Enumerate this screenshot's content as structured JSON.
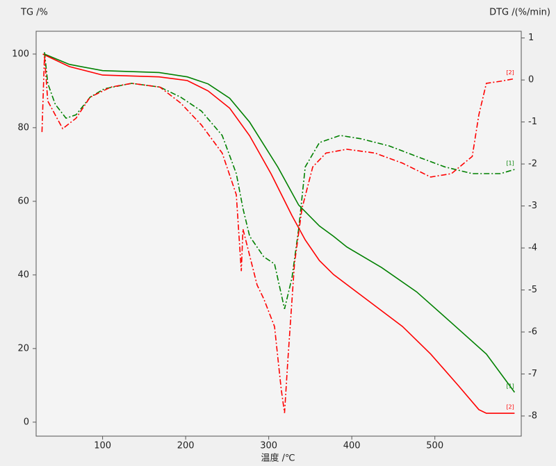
{
  "chart_data": {
    "type": "line",
    "y_label": "TG /%",
    "y2_label": "DTG /(%/min)",
    "x_label": "温度 /℃",
    "xlim": [
      20,
      604
    ],
    "xticks": [
      100,
      200,
      300,
      400,
      500
    ],
    "ylim": [
      -3.8,
      106.2
    ],
    "yticks": [
      0,
      20,
      40,
      60,
      80,
      100
    ],
    "y2lim": [
      -8.48,
      1.16
    ],
    "y2ticks": [
      1,
      0,
      -1,
      -2,
      -3,
      -4,
      -5,
      -6,
      -7,
      -8
    ],
    "series": [
      {
        "name": "[1]",
        "color": "#008000",
        "style": "solid",
        "x": [
          30,
          60,
          100,
          168,
          202,
          227,
          253,
          277,
          311,
          336,
          361,
          378,
          394,
          436,
          478,
          520,
          562,
          596
        ],
        "values": [
          100,
          97.2,
          95.5,
          95,
          93.8,
          91.9,
          88,
          81.5,
          69.3,
          59,
          53.3,
          50.5,
          47.6,
          42,
          35.4,
          27,
          18.5,
          8.1
        ]
      },
      {
        "name": "[2]",
        "color": "#ff0000",
        "style": "solid",
        "x": [
          28,
          60,
          100,
          168,
          202,
          227,
          253,
          277,
          303,
          328,
          344,
          361,
          378,
          411,
          461,
          495,
          528,
          553,
          562,
          596
        ],
        "values": [
          100,
          96.6,
          94.3,
          93.8,
          92.8,
          90,
          85.3,
          77.8,
          67.4,
          56.1,
          49.5,
          43.9,
          40.1,
          34.5,
          26,
          18.5,
          10,
          3.4,
          2.4,
          2.4
        ]
      },
      {
        "name": "[1]",
        "color": "#008000",
        "style": "dashdot",
        "axis": "y2",
        "x": [
          30,
          34,
          43,
          56,
          68,
          85,
          102,
          135,
          169,
          194,
          219,
          244,
          261,
          269,
          277,
          294,
          307,
          319,
          328,
          336,
          344,
          361,
          386,
          411,
          445,
          478,
          512,
          545,
          579,
          596
        ],
        "values": [
          0.66,
          -0.08,
          -0.58,
          -0.91,
          -0.83,
          -0.41,
          -0.21,
          -0.08,
          -0.17,
          -0.41,
          -0.74,
          -1.32,
          -2.23,
          -3.06,
          -3.72,
          -4.21,
          -4.38,
          -5.45,
          -4.71,
          -3.55,
          -2.07,
          -1.49,
          -1.32,
          -1.4,
          -1.57,
          -1.82,
          -2.07,
          -2.23,
          -2.23,
          -2.13
        ]
      },
      {
        "name": "[2]",
        "color": "#ff0000",
        "style": "dashdot",
        "axis": "y2",
        "x": [
          27,
          30,
          34,
          52,
          68,
          85,
          110,
          135,
          169,
          194,
          219,
          244,
          261,
          267,
          269,
          286,
          294,
          307,
          315,
          319,
          323,
          331,
          340,
          353,
          369,
          394,
          428,
          461,
          495,
          520,
          545,
          553,
          562,
          579,
          596
        ],
        "values": [
          -1.24,
          0.58,
          -0.5,
          -1.16,
          -0.91,
          -0.41,
          -0.17,
          -0.08,
          -0.17,
          -0.55,
          -1.07,
          -1.74,
          -2.73,
          -4.55,
          -3.55,
          -4.88,
          -5.21,
          -5.87,
          -7.36,
          -7.93,
          -6.69,
          -4.38,
          -3.06,
          -2.07,
          -1.74,
          -1.65,
          -1.74,
          -1.98,
          -2.31,
          -2.23,
          -1.82,
          -0.83,
          -0.08,
          -0.03,
          0.03
        ]
      }
    ]
  }
}
